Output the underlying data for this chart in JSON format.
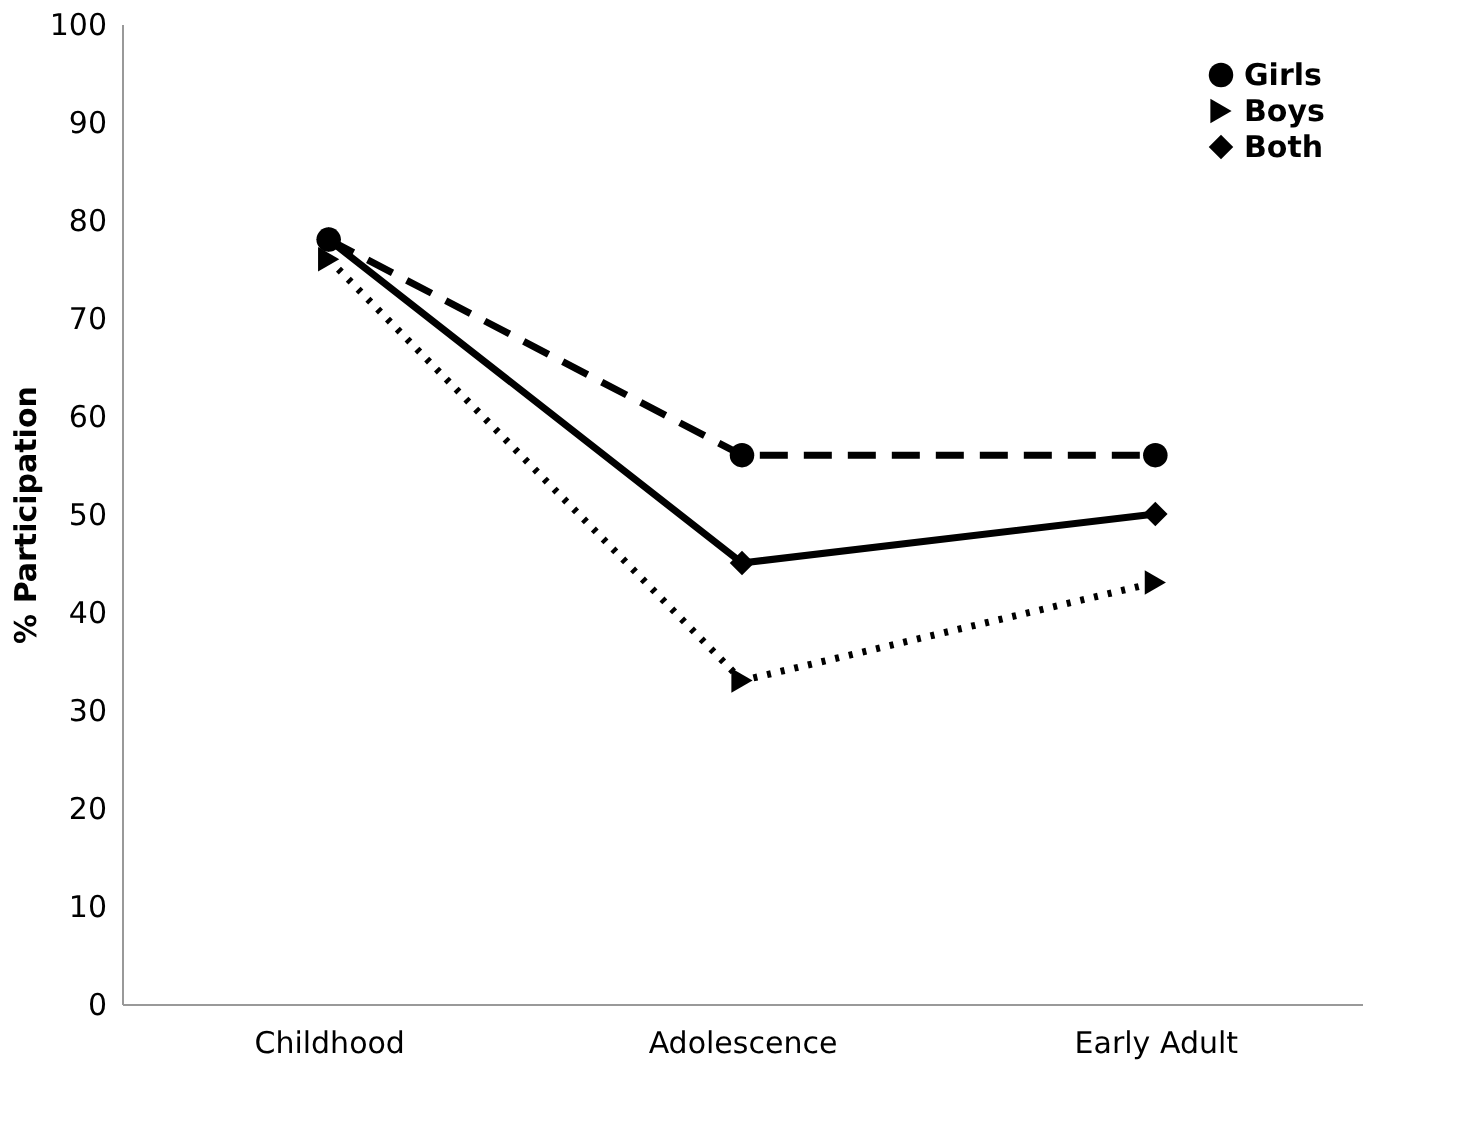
{
  "chart_data": {
    "type": "line",
    "ylabel": "% Participation",
    "categories": [
      "Childhood",
      "Adolescence",
      "Early Adult"
    ],
    "series": [
      {
        "name": "Girls",
        "color": "#000000",
        "values": [
          78,
          56,
          56
        ],
        "marker": "circle",
        "line_style": "dashed"
      },
      {
        "name": "Boys",
        "color": "#000000",
        "values": [
          76,
          33,
          43
        ],
        "marker": "triangle",
        "line_style": "dotted"
      },
      {
        "name": "Both",
        "color": "#000000",
        "values": [
          78,
          45,
          50
        ],
        "marker": "diamond",
        "line_style": "solid"
      }
    ],
    "ylim": [
      0,
      100
    ],
    "yticks": [
      0,
      10,
      20,
      30,
      40,
      50,
      60,
      70,
      80,
      90,
      100
    ],
    "grid": false,
    "legend": "top right"
  }
}
